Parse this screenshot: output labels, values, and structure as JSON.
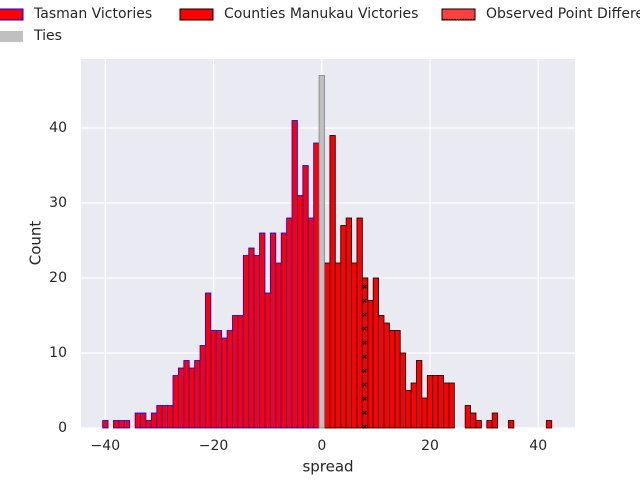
{
  "chart_data": {
    "type": "histogram",
    "xlabel": "spread",
    "ylabel": "Count",
    "xlim": [
      -44.5,
      46.8
    ],
    "ylim": [
      0,
      49.2
    ],
    "xticks": [
      {
        "value": -40,
        "label": "−40"
      },
      {
        "value": -20,
        "label": "−20"
      },
      0,
      20,
      40
    ],
    "yticks": [
      0,
      10,
      20,
      30,
      40
    ],
    "grid": true,
    "legend": "top",
    "series": [
      {
        "name": "Tasman Victories",
        "color": "#ff0000",
        "edgecolor": "#0000ff",
        "bins": [
          -40.5,
          -39.5,
          -38.5,
          -37.5,
          -36.5,
          -35.5,
          -34.5,
          -33.5,
          -32.5,
          -31.5,
          -30.5,
          -29.5,
          -28.5,
          -27.5,
          -26.5,
          -25.5,
          -24.5,
          -23.5,
          -22.5,
          -21.5,
          -20.5,
          -19.5,
          -18.5,
          -17.5,
          -16.5,
          -15.5,
          -14.5,
          -13.5,
          -12.5,
          -11.5,
          -10.5,
          -9.5,
          -8.5,
          -7.5,
          -6.5,
          -5.5,
          -4.5,
          -3.5,
          -2.5,
          -1.5,
          -0.5
        ],
        "values": [
          1,
          0,
          1,
          1,
          1,
          0,
          2,
          2,
          1,
          2,
          3,
          3,
          3,
          7,
          8,
          9,
          8,
          9,
          11,
          18,
          13,
          13,
          12,
          13,
          15,
          15,
          23,
          24,
          23,
          26,
          18,
          26,
          22,
          26,
          28,
          41,
          31,
          35,
          28,
          38
        ]
      },
      {
        "name": "Counties Manukau Victories",
        "color": "#ff0000",
        "edgecolor": "#000000",
        "bins": [
          0.5,
          1.5,
          2.5,
          3.5,
          4.5,
          5.5,
          6.5,
          7.5,
          8.5,
          9.5,
          10.5,
          11.5,
          12.5,
          13.5,
          14.5,
          15.5,
          16.5,
          17.5,
          18.5,
          19.5,
          20.5,
          21.5,
          22.5,
          23.5,
          24.5,
          25.5,
          26.5,
          27.5,
          28.5,
          29.5,
          30.5,
          31.5,
          32.5,
          33.5,
          34.5,
          35.5,
          36.5,
          37.5,
          38.5,
          39.5,
          40.5,
          41.5,
          42.5
        ],
        "values": [
          22,
          39,
          22,
          27,
          28,
          22,
          28,
          20,
          17,
          20,
          15,
          14,
          13,
          13,
          10,
          5,
          6,
          9,
          4,
          7,
          7,
          7,
          6,
          6,
          0,
          0,
          3,
          2,
          1,
          0,
          1,
          2,
          0,
          0,
          1,
          0,
          0,
          0,
          0,
          0,
          0,
          1
        ]
      },
      {
        "name": "Observed Point Difference",
        "color": "#ff0000",
        "edgecolor": "#000000",
        "hatch": "x",
        "bins": [
          7.5,
          8.5
        ],
        "values": [
          20
        ]
      },
      {
        "name": "Ties",
        "color": "#c0c0c0",
        "edgecolor": "#808080",
        "bins": [
          -0.5,
          0.5
        ],
        "values": [
          47
        ]
      }
    ]
  }
}
